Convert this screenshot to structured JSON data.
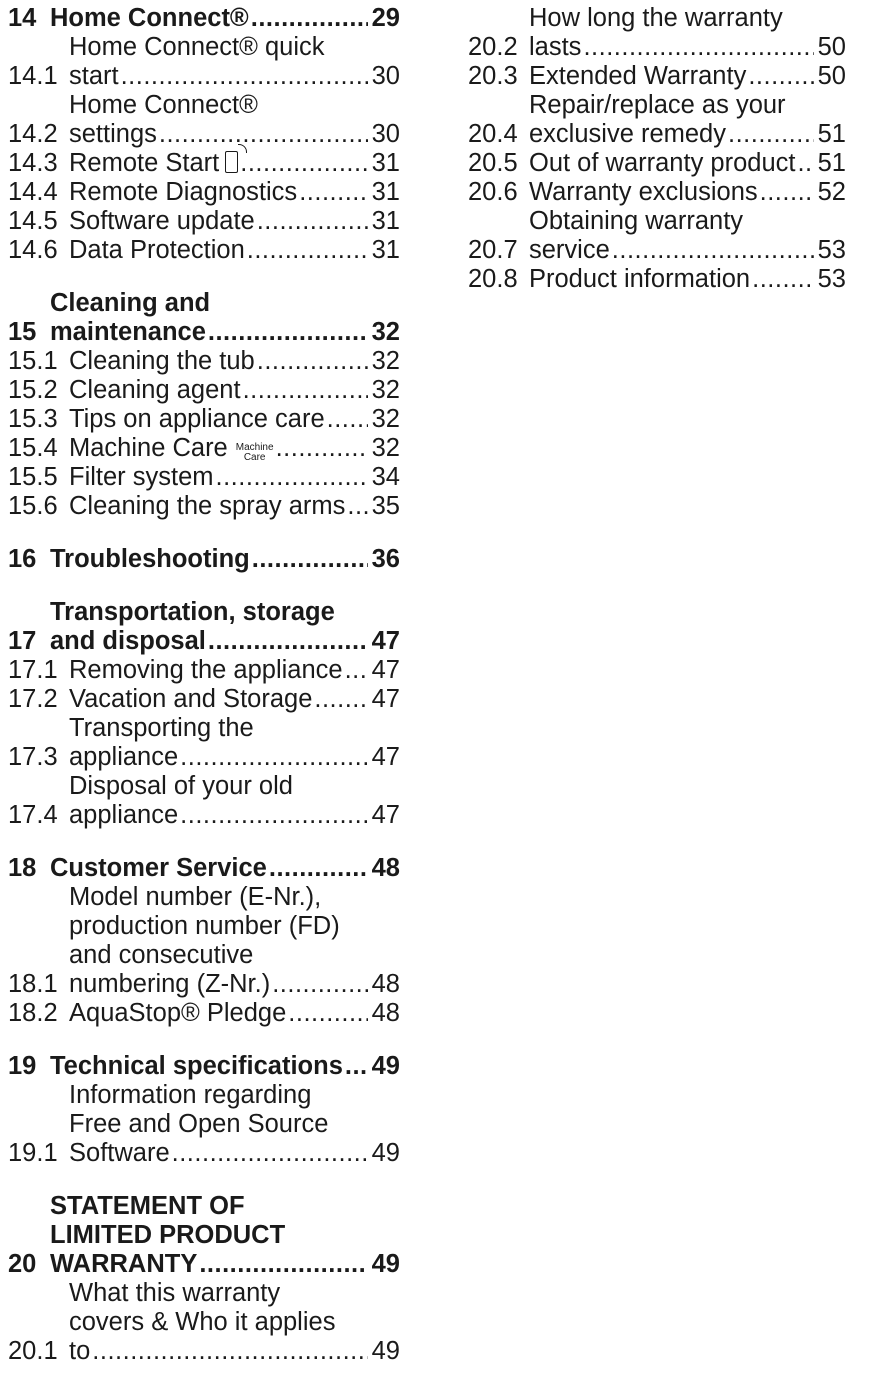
{
  "left": {
    "s14": {
      "num": "14",
      "title": "Home Connect®",
      "page": "29"
    },
    "e14_1": {
      "num": "14.1",
      "l1": "Home Connect® quick",
      "l2": "start",
      "page": "30"
    },
    "e14_2": {
      "num": "14.2",
      "l1": "Home Connect®",
      "l2": "settings",
      "page": "30"
    },
    "e14_3": {
      "num": "14.3",
      "text": "Remote Start",
      "icon": "remote-start-icon",
      "page": "31"
    },
    "e14_4": {
      "num": "14.4",
      "text": "Remote Diagnostics",
      "page": "31"
    },
    "e14_5": {
      "num": "14.5",
      "text": "Software update",
      "page": "31"
    },
    "e14_6": {
      "num": "14.6",
      "text": "Data Protection",
      "page": "31"
    },
    "s15": {
      "num": "15",
      "l1": "Cleaning and",
      "l2": "maintenance",
      "page": "32"
    },
    "e15_1": {
      "num": "15.1",
      "text": "Cleaning the tub",
      "page": "32"
    },
    "e15_2": {
      "num": "15.2",
      "text": "Cleaning agent",
      "page": "32"
    },
    "e15_3": {
      "num": "15.3",
      "text": "Tips on appliance care",
      "page": "32"
    },
    "e15_4": {
      "num": "15.4",
      "text": "Machine Care",
      "icon_l1": "Machine",
      "icon_l2": "Care",
      "page": "32"
    },
    "e15_5": {
      "num": "15.5",
      "text": "Filter system",
      "page": "34"
    },
    "e15_6": {
      "num": "15.6",
      "text": "Cleaning the spray arms",
      "page": "35"
    },
    "s16": {
      "num": "16",
      "title": "Troubleshooting",
      "page": "36"
    },
    "s17": {
      "num": "17",
      "l1": "Transportation, storage",
      "l2": "and disposal",
      "page": "47"
    },
    "e17_1": {
      "num": "17.1",
      "text": "Removing the appliance",
      "page": "47"
    },
    "e17_2": {
      "num": "17.2",
      "text": "Vacation and Storage",
      "page": "47"
    },
    "e17_3": {
      "num": "17.3",
      "l1": "Transporting the",
      "l2": "appliance",
      "page": "47"
    },
    "e17_4": {
      "num": "17.4",
      "l1": "Disposal of your old",
      "l2": "appliance",
      "page": "47"
    },
    "s18": {
      "num": "18",
      "title": "Customer Service",
      "page": "48"
    },
    "e18_1": {
      "num": "18.1",
      "l1": "Model number (E-Nr.),",
      "l2": "production number (FD)",
      "l3": "and consecutive",
      "l4": "numbering (Z-Nr.)",
      "page": "48"
    },
    "e18_2": {
      "num": "18.2",
      "text": "AquaStop® Pledge",
      "page": "48"
    },
    "s19": {
      "num": "19",
      "title": "Technical specifications",
      "page": "49"
    },
    "e19_1": {
      "num": "19.1",
      "l1": "Information regarding",
      "l2": "Free and Open Source",
      "l3": "Software",
      "page": "49"
    },
    "s20": {
      "num": "20",
      "l1": "STATEMENT OF",
      "l2": "LIMITED PRODUCT",
      "l3": "WARRANTY",
      "page": "49"
    },
    "e20_1": {
      "num": "20.1",
      "l1": "What this warranty",
      "l2": "covers & Who it applies",
      "l3": "to",
      "page": "49"
    }
  },
  "right": {
    "e20_2": {
      "num": "20.2",
      "l1": "How long the warranty",
      "l2": "lasts",
      "page": "50"
    },
    "e20_3": {
      "num": "20.3",
      "text": "Extended Warranty",
      "page": "50"
    },
    "e20_4": {
      "num": "20.4",
      "l1": "Repair/replace as your",
      "l2": "exclusive remedy",
      "page": "51"
    },
    "e20_5": {
      "num": "20.5",
      "text": "Out of warranty product",
      "page": "51"
    },
    "e20_6": {
      "num": "20.6",
      "text": "Warranty exclusions",
      "page": "52"
    },
    "e20_7": {
      "num": "20.7",
      "l1": "Obtaining warranty",
      "l2": "service",
      "page": "53"
    },
    "e20_8": {
      "num": "20.8",
      "text": "Product information",
      "page": "53"
    }
  }
}
